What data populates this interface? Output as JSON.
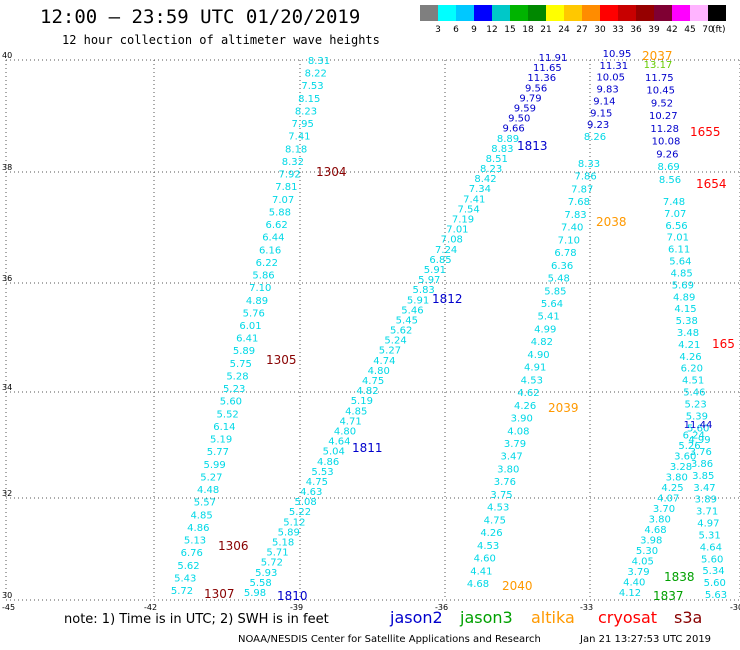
{
  "header": {
    "title": "12:00 – 23:59 UTC 01/20/2019",
    "subtitle": "12 hour collection of altimeter wave heights"
  },
  "colorbar": {
    "ticks": [
      "3",
      "6",
      "9",
      "12",
      "15",
      "18",
      "21",
      "24",
      "27",
      "30",
      "33",
      "36",
      "39",
      "42",
      "45",
      "70"
    ],
    "unit": "(ft)",
    "colors": [
      "#7f7f7f",
      "#00ffff",
      "#00c8ff",
      "#0000ff",
      "#00c8c8",
      "#00b400",
      "#008800",
      "#ffff00",
      "#ffc800",
      "#ff8c00",
      "#ff0000",
      "#c80000",
      "#960000",
      "#7f0033",
      "#ff00ff",
      "#ffb4ff",
      "#000000"
    ]
  },
  "axes": {
    "lat_labels": [
      "40",
      "38",
      "36",
      "34",
      "32",
      "30"
    ],
    "lon_labels": [
      "-45",
      "-42",
      "-39",
      "-36",
      "-33",
      "-30"
    ]
  },
  "legend": {
    "note": "note: 1) Time is in UTC; 2) SWH is in feet",
    "items": [
      {
        "label": "jason2",
        "color": "#0000cc"
      },
      {
        "label": "jason3",
        "color": "#00a000"
      },
      {
        "label": "altika",
        "color": "#ff9900"
      },
      {
        "label": "cryosat",
        "color": "#ff0000"
      },
      {
        "label": "s3a",
        "color": "#880000"
      }
    ]
  },
  "credit": "NOAA/NESDIS Center for Satellite Applications and Research",
  "timestamp": "Jan 21 13:27:53 UTC 2019",
  "tracks": [
    {
      "id": "t1",
      "values": [
        "8.31",
        "8.22",
        "7.53",
        "8.15",
        "8.23",
        "7.95",
        "7.41",
        "8.18",
        "8.32",
        "7.92",
        "7.81",
        "7.07",
        "5.88",
        "6.62",
        "6.44",
        "6.16",
        "6.22",
        "5.86",
        "7.10",
        "4.89",
        "5.76",
        "6.01",
        "6.41",
        "5.89",
        "5.75",
        "5.28",
        "5.23",
        "5.60",
        "5.52",
        "6.14",
        "5.19",
        "5.77",
        "5.99",
        "5.27",
        "4.48",
        "5.57",
        "4.85",
        "4.86",
        "5.13",
        "6.76",
        "5.62",
        "5.43",
        "5.72"
      ]
    },
    {
      "id": "t2",
      "values": [
        "11.91",
        "11.65",
        "11.36",
        "9.56",
        "9.79",
        "9.59",
        "9.50",
        "9.66",
        "8.89",
        "8.83",
        "8.51",
        "8.23",
        "8.42",
        "7.34",
        "7.41",
        "7.54",
        "7.19",
        "7.01",
        "7.08",
        "7.24",
        "6.85",
        "5.91",
        "5.97",
        "5.83",
        "5.91",
        "5.46",
        "5.45",
        "5.62",
        "5.24",
        "5.27",
        "4.74",
        "4.80",
        "4.75",
        "4.82",
        "5.19",
        "4.85",
        "4.71",
        "4.80",
        "4.64",
        "5.04",
        "4.86",
        "5.53",
        "4.75",
        "4.63",
        "5.08",
        "5.22",
        "5.12",
        "5.89",
        "5.18",
        "5.71",
        "5.72",
        "5.93",
        "5.58",
        "5.98"
      ]
    },
    {
      "id": "t3",
      "values": [
        "8.33",
        "7.86",
        "7.87",
        "7.68",
        "7.83",
        "7.40",
        "7.10",
        "6.78",
        "6.36",
        "5.48",
        "5.85",
        "5.64",
        "5.41",
        "4.99",
        "4.82",
        "4.90",
        "4.91",
        "4.53",
        "4.62",
        "4.26",
        "3.90",
        "4.08",
        "3.79",
        "3.47",
        "3.80",
        "3.76",
        "3.75",
        "4.53",
        "4.75",
        "4.26",
        "4.53",
        "4.60",
        "4.41",
        "4.68"
      ]
    },
    {
      "id": "t4",
      "values": [
        "10.95",
        "11.31",
        "10.05",
        "9.83",
        "9.14",
        "9.15",
        "9.23",
        "8.26"
      ]
    },
    {
      "id": "t5",
      "values": [
        "13.17",
        "11.75",
        "10.45",
        "9.52",
        "10.27",
        "11.28",
        "10.08",
        "9.26",
        "8.69",
        "8.56"
      ]
    },
    {
      "id": "t6",
      "values": [
        "7.48",
        "7.07",
        "6.56",
        "7.01",
        "6.11",
        "5.64",
        "4.85",
        "5.69",
        "4.89",
        "4.15",
        "5.38",
        "3.48",
        "4.21",
        "4.26",
        "6.20",
        "4.51",
        "5.46",
        "5.23",
        "5.39",
        "5.60",
        "4.99",
        "3.76",
        "3.86",
        "3.85",
        "3.47",
        "3.89",
        "3.71",
        "4.97",
        "5.31",
        "4.64",
        "5.60",
        "5.34",
        "5.60",
        "5.63"
      ]
    },
    {
      "id": "t7",
      "values": [
        "11.44",
        "6.24",
        "5.26",
        "3.60",
        "3.28",
        "3.80",
        "4.25",
        "4.07",
        "3.70",
        "3.80",
        "4.68",
        "3.98",
        "5.30",
        "4.05",
        "3.79",
        "4.40",
        "4.12"
      ]
    }
  ],
  "orbit_labels": [
    {
      "text": "2037",
      "color": "#ff9900"
    },
    {
      "text": "1655",
      "color": "#ff0000"
    },
    {
      "text": "1654",
      "color": "#ff0000"
    },
    {
      "text": "1304",
      "color": "#880000"
    },
    {
      "text": "1813",
      "color": "#0000cc"
    },
    {
      "text": "2038",
      "color": "#ff9900"
    },
    {
      "text": "1812",
      "color": "#0000cc"
    },
    {
      "text": "1305",
      "color": "#880000"
    },
    {
      "text": "2039",
      "color": "#ff9900"
    },
    {
      "text": "1811",
      "color": "#0000cc"
    },
    {
      "text": "1306",
      "color": "#880000"
    },
    {
      "text": "1307",
      "color": "#880000"
    },
    {
      "text": "1810",
      "color": "#0000cc"
    },
    {
      "text": "2040",
      "color": "#ff9900"
    },
    {
      "text": "1838",
      "color": "#00a000"
    },
    {
      "text": "1837",
      "color": "#00a000"
    },
    {
      "text": "165",
      "color": "#ff0000"
    }
  ]
}
